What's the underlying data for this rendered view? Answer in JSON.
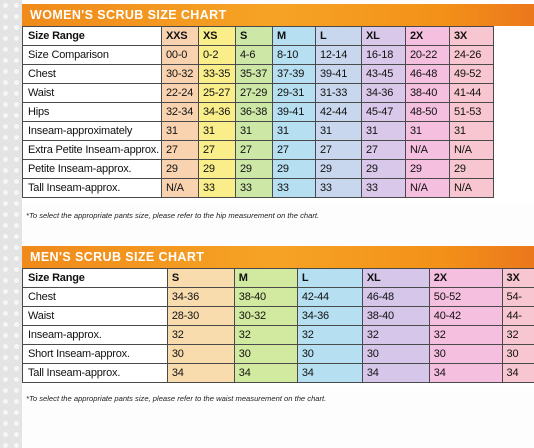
{
  "women": {
    "title": "WOMEN'S SCRUB SIZE CHART",
    "sizes": [
      "XXS",
      "XS",
      "S",
      "M",
      "L",
      "XL",
      "2X",
      "3X"
    ],
    "column_colors": [
      "#f9d3b0",
      "#f9ee8a",
      "#cde7a6",
      "#b6dff1",
      "#c8d7ee",
      "#d9c8e9",
      "#f5bfe0",
      "#f8c6d0"
    ],
    "rows": [
      {
        "label": "Size Range",
        "values": [
          "XXS",
          "XS",
          "S",
          "M",
          "L",
          "XL",
          "2X",
          "3X"
        ]
      },
      {
        "label": "Size Comparison",
        "values": [
          "00-0",
          "0-2",
          "4-6",
          "8-10",
          "12-14",
          "16-18",
          "20-22",
          "24-26"
        ]
      },
      {
        "label": "Chest",
        "values": [
          "30-32",
          "33-35",
          "35-37",
          "37-39",
          "39-41",
          "43-45",
          "46-48",
          "49-52"
        ]
      },
      {
        "label": "Waist",
        "values": [
          "22-24",
          "25-27",
          "27-29",
          "29-31",
          "31-33",
          "34-36",
          "38-40",
          "41-44"
        ]
      },
      {
        "label": "Hips",
        "values": [
          "32-34",
          "34-36",
          "36-38",
          "39-41",
          "42-44",
          "45-47",
          "48-50",
          "51-53"
        ]
      },
      {
        "label": "Inseam-approximately",
        "values": [
          "31",
          "31",
          "31",
          "31",
          "31",
          "31",
          "31",
          "31"
        ]
      },
      {
        "label": "Extra Petite Inseam-approx.",
        "values": [
          "27",
          "27",
          "27",
          "27",
          "27",
          "27",
          "N/A",
          "N/A"
        ]
      },
      {
        "label": "Petite Inseam-approx.",
        "values": [
          "29",
          "29",
          "29",
          "29",
          "29",
          "29",
          "29",
          "29"
        ]
      },
      {
        "label": "Tall Inseam-approx.",
        "values": [
          "N/A",
          "33",
          "33",
          "33",
          "33",
          "33",
          "N/A",
          "N/A"
        ]
      }
    ],
    "footnote": "*To select the appropriate pants size, please refer to the hip measurement on the chart."
  },
  "men": {
    "title": "MEN'S SCRUB SIZE CHART",
    "sizes": [
      "S",
      "M",
      "L",
      "XL",
      "2X",
      "3X"
    ],
    "column_colors": [
      "#f9dcae",
      "#d2ea9f",
      "#b6dff1",
      "#d5c6ea",
      "#f5bfe0",
      "#f8c6d0"
    ],
    "rows": [
      {
        "label": "Size Range",
        "values": [
          "S",
          "M",
          "L",
          "XL",
          "2X",
          "3X"
        ]
      },
      {
        "label": "Chest",
        "values": [
          "34-36",
          "38-40",
          "42-44",
          "46-48",
          "50-52",
          "54-"
        ]
      },
      {
        "label": "Waist",
        "values": [
          "28-30",
          "30-32",
          "34-36",
          "38-40",
          "40-42",
          "44-"
        ]
      },
      {
        "label": "Inseam-approx.",
        "values": [
          "32",
          "32",
          "32",
          "32",
          "32",
          "32"
        ]
      },
      {
        "label": "Short Inseam-approx.",
        "values": [
          "30",
          "30",
          "30",
          "30",
          "30",
          "30"
        ]
      },
      {
        "label": "Tall Inseam-approx.",
        "values": [
          "34",
          "34",
          "34",
          "34",
          "34",
          "34"
        ]
      }
    ],
    "footnote": "*To select the appropriate pants size, please refer to the waist measurement on the chart."
  }
}
